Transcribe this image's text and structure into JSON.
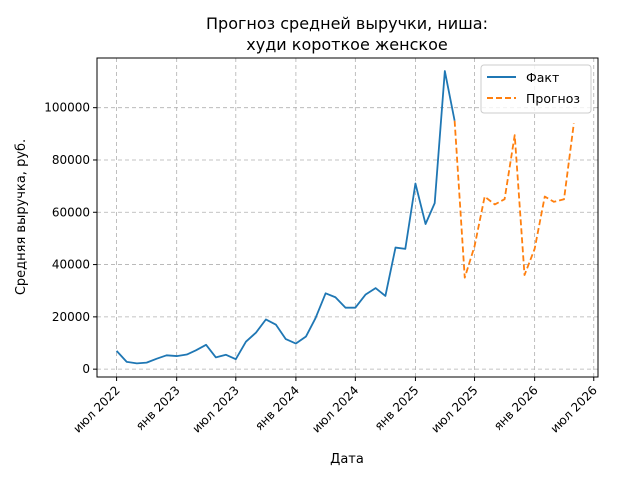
{
  "chart_data": {
    "type": "line",
    "title_lines": [
      "Прогноз средней выручки, ниша:",
      "худи короткое женское"
    ],
    "xlabel": "Дата",
    "ylabel": "Средняя выручка, руб.",
    "x_range": [
      "2022-05-02",
      "2026-07-14"
    ],
    "ylim": [
      -3000,
      119000
    ],
    "x_ticks": [
      {
        "date": "2022-07-01",
        "label": "июл 2022"
      },
      {
        "date": "2023-01-01",
        "label": "янв 2023"
      },
      {
        "date": "2023-07-01",
        "label": "июл 2023"
      },
      {
        "date": "2024-01-01",
        "label": "янв 2024"
      },
      {
        "date": "2024-07-01",
        "label": "июл 2024"
      },
      {
        "date": "2025-01-01",
        "label": "янв 2025"
      },
      {
        "date": "2025-07-01",
        "label": "июл 2025"
      },
      {
        "date": "2026-01-01",
        "label": "янв 2026"
      },
      {
        "date": "2026-07-01",
        "label": "июл 2026"
      }
    ],
    "y_ticks": [
      {
        "value": 0,
        "label": "0"
      },
      {
        "value": 20000,
        "label": "20000"
      },
      {
        "value": 40000,
        "label": "40000"
      },
      {
        "value": 60000,
        "label": "60000"
      },
      {
        "value": 80000,
        "label": "80000"
      },
      {
        "value": 100000,
        "label": "100000"
      }
    ],
    "grid": true,
    "legend_position": "top-right",
    "series": [
      {
        "name": "Факт",
        "color": "#1f77b4",
        "style": "solid",
        "points": [
          {
            "x": "2022-07-01",
            "y": 7000
          },
          {
            "x": "2022-08-01",
            "y": 2800
          },
          {
            "x": "2022-09-01",
            "y": 2200
          },
          {
            "x": "2022-10-01",
            "y": 2500
          },
          {
            "x": "2022-11-01",
            "y": 4000
          },
          {
            "x": "2022-12-01",
            "y": 5300
          },
          {
            "x": "2023-01-01",
            "y": 5000
          },
          {
            "x": "2023-02-01",
            "y": 5600
          },
          {
            "x": "2023-03-01",
            "y": 7200
          },
          {
            "x": "2023-04-01",
            "y": 9300
          },
          {
            "x": "2023-05-01",
            "y": 4500
          },
          {
            "x": "2023-06-01",
            "y": 5500
          },
          {
            "x": "2023-07-01",
            "y": 3800
          },
          {
            "x": "2023-08-01",
            "y": 10500
          },
          {
            "x": "2023-09-01",
            "y": 14000
          },
          {
            "x": "2023-10-01",
            "y": 19000
          },
          {
            "x": "2023-11-01",
            "y": 17000
          },
          {
            "x": "2023-12-01",
            "y": 11500
          },
          {
            "x": "2024-01-01",
            "y": 9800
          },
          {
            "x": "2024-02-01",
            "y": 12500
          },
          {
            "x": "2024-03-01",
            "y": 19500
          },
          {
            "x": "2024-04-01",
            "y": 29000
          },
          {
            "x": "2024-05-01",
            "y": 27500
          },
          {
            "x": "2024-06-01",
            "y": 23500
          },
          {
            "x": "2024-07-01",
            "y": 23500
          },
          {
            "x": "2024-08-01",
            "y": 28500
          },
          {
            "x": "2024-09-01",
            "y": 31000
          },
          {
            "x": "2024-10-01",
            "y": 28000
          },
          {
            "x": "2024-11-01",
            "y": 46500
          },
          {
            "x": "2024-12-01",
            "y": 46000
          },
          {
            "x": "2025-01-01",
            "y": 71000
          },
          {
            "x": "2025-02-01",
            "y": 55500
          },
          {
            "x": "2025-03-01",
            "y": 63500
          },
          {
            "x": "2025-04-01",
            "y": 114000
          },
          {
            "x": "2025-05-01",
            "y": 95000
          }
        ]
      },
      {
        "name": "Прогноз",
        "color": "#ff7f0e",
        "style": "dashed",
        "points": [
          {
            "x": "2025-05-01",
            "y": 95000
          },
          {
            "x": "2025-06-01",
            "y": 35000
          },
          {
            "x": "2025-07-01",
            "y": 47000
          },
          {
            "x": "2025-08-01",
            "y": 66000
          },
          {
            "x": "2025-09-01",
            "y": 63000
          },
          {
            "x": "2025-10-01",
            "y": 65000
          },
          {
            "x": "2025-11-01",
            "y": 89500
          },
          {
            "x": "2025-12-01",
            "y": 36000
          },
          {
            "x": "2026-01-01",
            "y": 46000
          },
          {
            "x": "2026-02-01",
            "y": 66000
          },
          {
            "x": "2026-03-01",
            "y": 64000
          },
          {
            "x": "2026-04-01",
            "y": 65000
          },
          {
            "x": "2026-05-01",
            "y": 94000
          }
        ]
      }
    ]
  }
}
